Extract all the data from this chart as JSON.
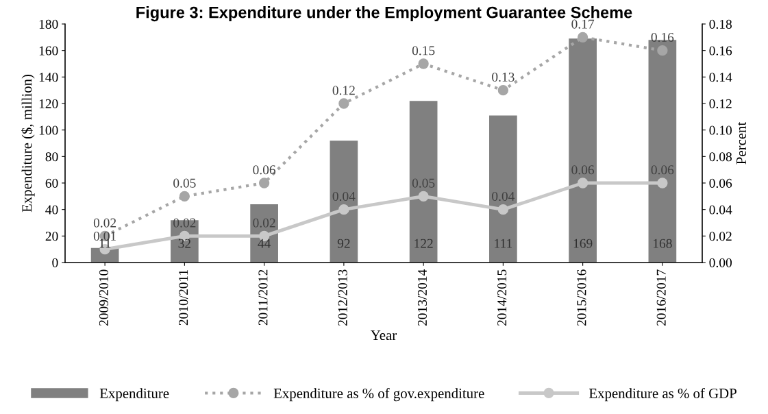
{
  "chart_data": {
    "type": "bar",
    "title": "Figure 3: Expenditure under the Employment Guarantee Scheme",
    "xlabel": "Year",
    "ylabel": "Expenditure ($, million)",
    "y2label": "Percent",
    "categories": [
      "2009/2010",
      "2010/2011",
      "2011/2012",
      "2012/2013",
      "2013/2014",
      "2014/2015",
      "2015/2016",
      "2016/2017"
    ],
    "series": [
      {
        "name": "Expenditure",
        "color": "#808080",
        "values": [
          11,
          32,
          44,
          92,
          122,
          111,
          169,
          168
        ]
      },
      {
        "name": "Expenditure as % of gov.expenditure",
        "type": "line",
        "axis": "y2",
        "color": "#a6a6a6",
        "marker": "circle",
        "line_style": "dotted",
        "values": [
          0.02,
          0.05,
          0.06,
          0.12,
          0.15,
          0.13,
          0.17,
          0.16
        ]
      },
      {
        "name": "Expenditure as % of GDP",
        "type": "line",
        "axis": "y2",
        "color": "#c8c8c8",
        "marker": "circle",
        "line_style": "solid",
        "values": [
          0.01,
          0.02,
          0.02,
          0.04,
          0.05,
          0.04,
          0.06,
          0.06
        ]
      }
    ],
    "ylim": [
      0,
      180
    ],
    "yticks": [
      0,
      20,
      40,
      60,
      80,
      100,
      120,
      140,
      160,
      180
    ],
    "y2lim": [
      0,
      0.18
    ],
    "y2ticks": [
      {
        "value": 0,
        "label": "0.00"
      },
      {
        "value": 0.02,
        "label": "0.02"
      },
      {
        "value": 0.04,
        "label": "0.04"
      },
      {
        "value": 0.06,
        "label": "0.06"
      },
      {
        "value": 0.08,
        "label": "0.08"
      },
      {
        "value": 0.1,
        "label": "0.10"
      },
      {
        "value": 0.12,
        "label": "0.12"
      },
      {
        "value": 0.14,
        "label": "0.14"
      },
      {
        "value": 0.16,
        "label": "0.16"
      },
      {
        "value": 0.18,
        "label": "0.18"
      }
    ],
    "data_labels": true,
    "legend": "bottom",
    "grid": false
  }
}
